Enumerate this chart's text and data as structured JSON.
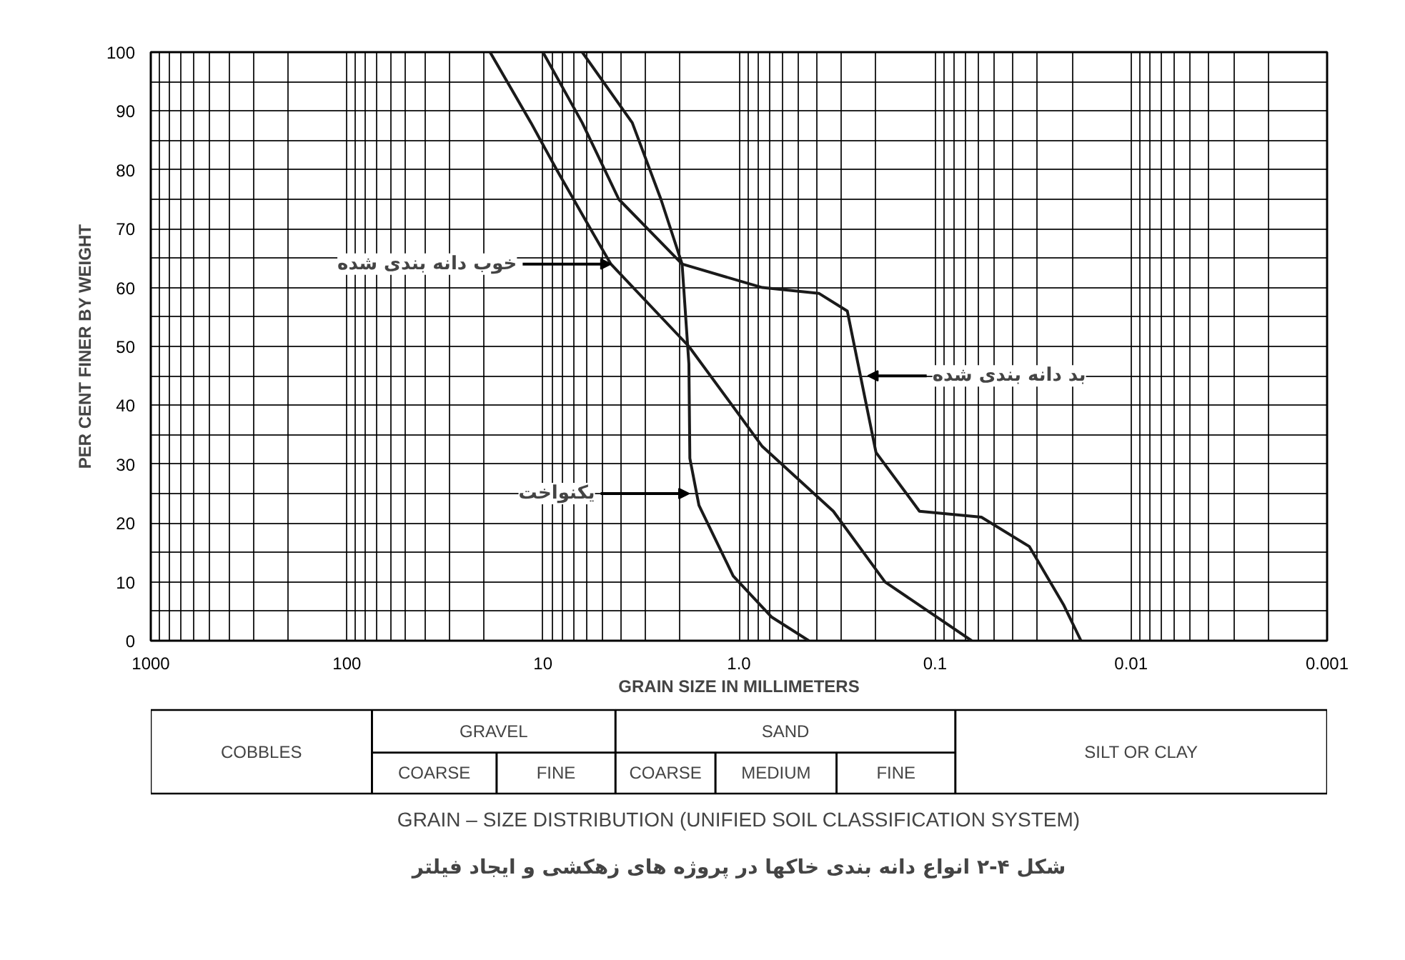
{
  "chart_data": {
    "type": "line",
    "title": "GRAIN – SIZE DISTRIBUTION (UNIFIED SOIL CLASSIFICATION SYSTEM)",
    "xlabel": "GRAIN SIZE IN MILLIMETERS",
    "ylabel": "PER CENT FINER BY WEIGHT",
    "log": "x",
    "xlim": [
      1000,
      0.001
    ],
    "ylim": [
      0,
      100
    ],
    "xticks": [
      1000,
      {
        "value": 900,
        "label": null
      },
      {
        "value": 800,
        "label": null
      },
      {
        "value": 700,
        "label": null
      },
      {
        "value": 600,
        "label": null
      },
      {
        "value": 500,
        "label": null
      },
      {
        "value": 400,
        "label": null
      },
      {
        "value": 300,
        "label": null
      },
      {
        "value": 200,
        "label": null
      },
      100,
      {
        "value": 90,
        "label": null
      },
      {
        "value": 80,
        "label": null
      },
      {
        "value": 70,
        "label": null
      },
      {
        "value": 60,
        "label": null
      },
      {
        "value": 50,
        "label": null
      },
      {
        "value": 40,
        "label": null
      },
      {
        "value": 30,
        "label": null
      },
      {
        "value": 20,
        "label": null
      },
      10,
      {
        "value": 9,
        "label": null
      },
      {
        "value": 8,
        "label": null
      },
      {
        "value": 7,
        "label": null
      },
      {
        "value": 6,
        "label": null
      },
      {
        "value": 5,
        "label": null
      },
      {
        "value": 4,
        "label": null
      },
      {
        "value": 3,
        "label": null
      },
      {
        "value": 2,
        "label": null
      },
      {
        "value": 1,
        "label": "1.0"
      },
      {
        "value": 0.9,
        "label": null
      },
      {
        "value": 0.8,
        "label": null
      },
      {
        "value": 0.7,
        "label": null
      },
      {
        "value": 0.6,
        "label": null
      },
      {
        "value": 0.5,
        "label": null
      },
      {
        "value": 0.4,
        "label": null
      },
      {
        "value": 0.3,
        "label": null
      },
      {
        "value": 0.2,
        "label": null
      },
      0.1,
      {
        "value": 0.09,
        "label": null
      },
      {
        "value": 0.08,
        "label": null
      },
      {
        "value": 0.07,
        "label": null
      },
      {
        "value": 0.06,
        "label": null
      },
      {
        "value": 0.05,
        "label": null
      },
      {
        "value": 0.04,
        "label": null
      },
      {
        "value": 0.03,
        "label": null
      },
      {
        "value": 0.02,
        "label": null
      },
      0.01,
      {
        "value": 0.009,
        "label": null
      },
      {
        "value": 0.008,
        "label": null
      },
      {
        "value": 0.007,
        "label": null
      },
      {
        "value": 0.006,
        "label": null
      },
      {
        "value": 0.005,
        "label": null
      },
      {
        "value": 0.004,
        "label": null
      },
      {
        "value": 0.003,
        "label": null
      },
      {
        "value": 0.002,
        "label": null
      },
      0.001
    ],
    "yticks": [
      0,
      {
        "value": 5,
        "label": null
      },
      10,
      {
        "value": 15,
        "label": null
      },
      20,
      {
        "value": 25,
        "label": null
      },
      30,
      {
        "value": 35,
        "label": null
      },
      40,
      {
        "value": 45,
        "label": null
      },
      50,
      {
        "value": 55,
        "label": null
      },
      60,
      {
        "value": 65,
        "label": null
      },
      70,
      {
        "value": 75,
        "label": null
      },
      80,
      {
        "value": 85,
        "label": null
      },
      90,
      {
        "value": 95,
        "label": null
      },
      100
    ],
    "grid": true,
    "marker": "none",
    "line_style": "solid",
    "series": [
      {
        "color": "#1a1a1a",
        "x": [
          18.6,
          11.5,
          8.5,
          5.5,
          4.5,
          1.8,
          0.76,
          0.33,
          0.18,
          0.065
        ],
        "values": [
          100,
          88,
          80,
          69,
          64,
          50,
          33,
          22,
          10,
          0
        ]
      },
      {
        "color": "#1a1a1a",
        "x": [
          6.3,
          3.5,
          2.5,
          1.95,
          1.8,
          1.78,
          1.6,
          1.07,
          0.68,
          0.44
        ],
        "values": [
          100,
          88,
          75,
          64,
          47,
          31,
          23,
          11,
          4,
          0
        ]
      },
      {
        "color": "#1a1a1a",
        "x": [
          10,
          6.3,
          4.1,
          1.95,
          0.76,
          0.39,
          0.28,
          0.24,
          0.2,
          0.12,
          0.058,
          0.033,
          0.022,
          0.018
        ],
        "values": [
          100,
          88,
          75,
          64,
          60,
          59,
          56,
          45,
          32,
          22,
          21,
          16,
          6,
          0
        ]
      }
    ],
    "annotations": [
      {
        "text": "خوب دانه بندی شده",
        "x": 4.5,
        "y": 64
      },
      {
        "text": "یکنواخت",
        "x": 1.8,
        "y": 25
      },
      {
        "text": "بد دانه بندی شده",
        "x": 0.22,
        "y": 45
      },
      "COBBLES",
      "GRAVEL",
      "COARSE",
      "FINE",
      "SAND",
      "COARSE",
      "MEDIUM",
      "FINE",
      "SILT OR CLAY",
      "شکل ۴-۲ انواع دانه بندی خاکها در پروژه های زهکشی و ایجاد فیلتر"
    ]
  }
}
